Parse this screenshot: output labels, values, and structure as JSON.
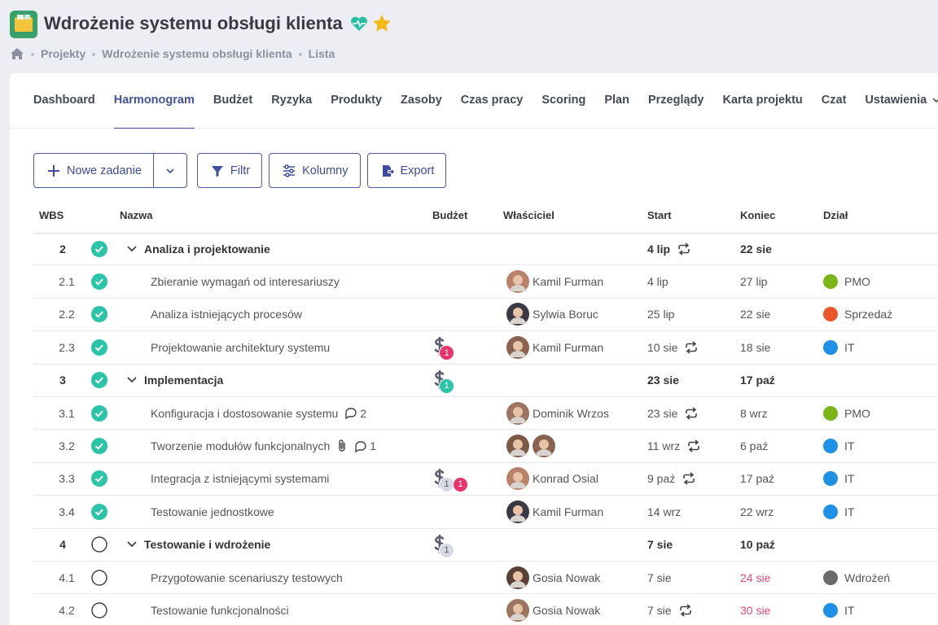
{
  "header": {
    "title": "Wdrożenie systemu obsługi klienta",
    "breadcrumb": [
      "Projekty",
      "Wdrożenie systemu obsługi klienta",
      "Lista"
    ]
  },
  "tabs": [
    {
      "label": "Dashboard"
    },
    {
      "label": "Harmonogram",
      "active": true
    },
    {
      "label": "Budżet"
    },
    {
      "label": "Ryzyka"
    },
    {
      "label": "Produkty"
    },
    {
      "label": "Zasoby"
    },
    {
      "label": "Czas pracy"
    },
    {
      "label": "Scoring"
    },
    {
      "label": "Plan"
    },
    {
      "label": "Przeglądy"
    },
    {
      "label": "Karta projektu"
    },
    {
      "label": "Czat"
    },
    {
      "label": "Ustawienia",
      "dropdown": true
    }
  ],
  "toolbar": {
    "buttons": [
      {
        "label": "Nowe zadanie",
        "icon": "plus",
        "split": true
      },
      {
        "label": "Filtr",
        "icon": "filter"
      },
      {
        "label": "Kolumny",
        "icon": "sliders"
      },
      {
        "label": "Export",
        "icon": "export"
      }
    ]
  },
  "table": {
    "columns": [
      "WBS",
      "Nazwa",
      "Budżet",
      "Właściciel",
      "Start",
      "Koniec",
      "Dział"
    ],
    "rows": [
      {
        "wbs": "2",
        "group": true,
        "done": true,
        "name": "Analiza i projektowanie",
        "start": "4 lip",
        "repeat": true,
        "end": "22 sie"
      },
      {
        "wbs": "2.1",
        "done": true,
        "name": "Zbieranie wymagań od interesariuszy",
        "owner": "Kamil Furman",
        "start": "4 lip",
        "end": "27 lip",
        "dept": {
          "name": "PMO",
          "color": "#7cb518"
        }
      },
      {
        "wbs": "2.2",
        "done": true,
        "name": "Analiza istniejących procesów",
        "owner": "Sylwia Boruc",
        "start": "25 lip",
        "end": "22 sie",
        "dept": {
          "name": "Sprzedaż",
          "color": "#e8562a"
        }
      },
      {
        "wbs": "2.3",
        "done": true,
        "name": "Projektowanie architektury systemu",
        "budget": [
          {
            "count": 1,
            "color": "#e8336d"
          }
        ],
        "owner": "Kamil Furman",
        "start": "10 sie",
        "repeat": true,
        "end": "18 sie",
        "dept": {
          "name": "IT",
          "color": "#1e90e6"
        }
      },
      {
        "wbs": "3",
        "group": true,
        "done": true,
        "name": "Implementacja",
        "budget": [
          {
            "count": 1,
            "color": "#2bc4a8"
          }
        ],
        "start": "23 sie",
        "end": "17 paź"
      },
      {
        "wbs": "3.1",
        "done": true,
        "name": "Konfiguracja i dostosowanie systemu",
        "comments": 2,
        "owner": "Dominik Wrzos",
        "start": "23 sie",
        "repeat": true,
        "end": "8 wrz",
        "dept": {
          "name": "PMO",
          "color": "#7cb518"
        }
      },
      {
        "wbs": "3.2",
        "done": true,
        "name": "Tworzenie modułów funkcjonalnych",
        "attachment": true,
        "comments": 1,
        "avatars": 2,
        "start": "11 wrz",
        "repeat": true,
        "end": "6 paź",
        "dept": {
          "name": "IT",
          "color": "#1e90e6"
        }
      },
      {
        "wbs": "3.3",
        "done": true,
        "name": "Integracja z istniejącymi systemami",
        "budget": [
          {
            "count": 1,
            "color": "#d7dae6"
          },
          {
            "count": 1,
            "color": "#e8336d"
          }
        ],
        "owner": "Konrad Osial",
        "start": "9 paź",
        "repeat": true,
        "end": "17 paź",
        "dept": {
          "name": "IT",
          "color": "#1e90e6"
        }
      },
      {
        "wbs": "3.4",
        "done": true,
        "name": "Testowanie jednostkowe",
        "owner": "Kamil Furman",
        "start": "14 wrz",
        "end": "22 wrz",
        "dept": {
          "name": "IT",
          "color": "#1e90e6"
        }
      },
      {
        "wbs": "4",
        "group": true,
        "done": false,
        "name": "Testowanie i wdrożenie",
        "budget": [
          {
            "count": 1,
            "color": "#d7dae6"
          }
        ],
        "start": "7 sie",
        "end": "10 paź"
      },
      {
        "wbs": "4.1",
        "done": false,
        "name": "Przygotowanie scenariuszy testowych",
        "owner": "Gosia Nowak",
        "start": "7 sie",
        "end": "24 sie",
        "overdue": true,
        "dept": {
          "name": "Wdrożeń",
          "color": "#6b6b6b"
        }
      },
      {
        "wbs": "4.2",
        "done": false,
        "name": "Testowanie funkcjonalności",
        "owner": "Gosia Nowak",
        "start": "7 sie",
        "repeat": true,
        "end": "30 sie",
        "overdue": true,
        "dept": {
          "name": "IT",
          "color": "#1e90e6"
        }
      }
    ]
  }
}
